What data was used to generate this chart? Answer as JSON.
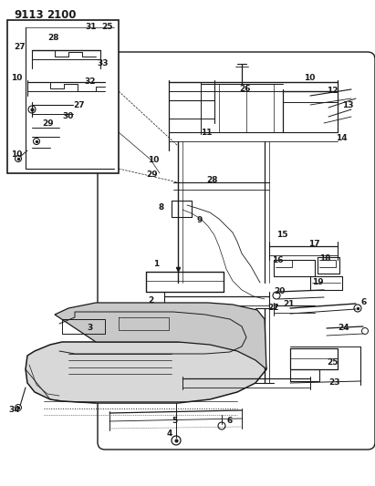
{
  "title": "9113 2100",
  "bg_color": "#ffffff",
  "line_color": "#1a1a1a",
  "text_color": "#1a1a1a",
  "title_fontsize": 9,
  "label_fontsize": 6.5,
  "fig_width": 4.11,
  "fig_height": 5.33,
  "dpi": 100
}
